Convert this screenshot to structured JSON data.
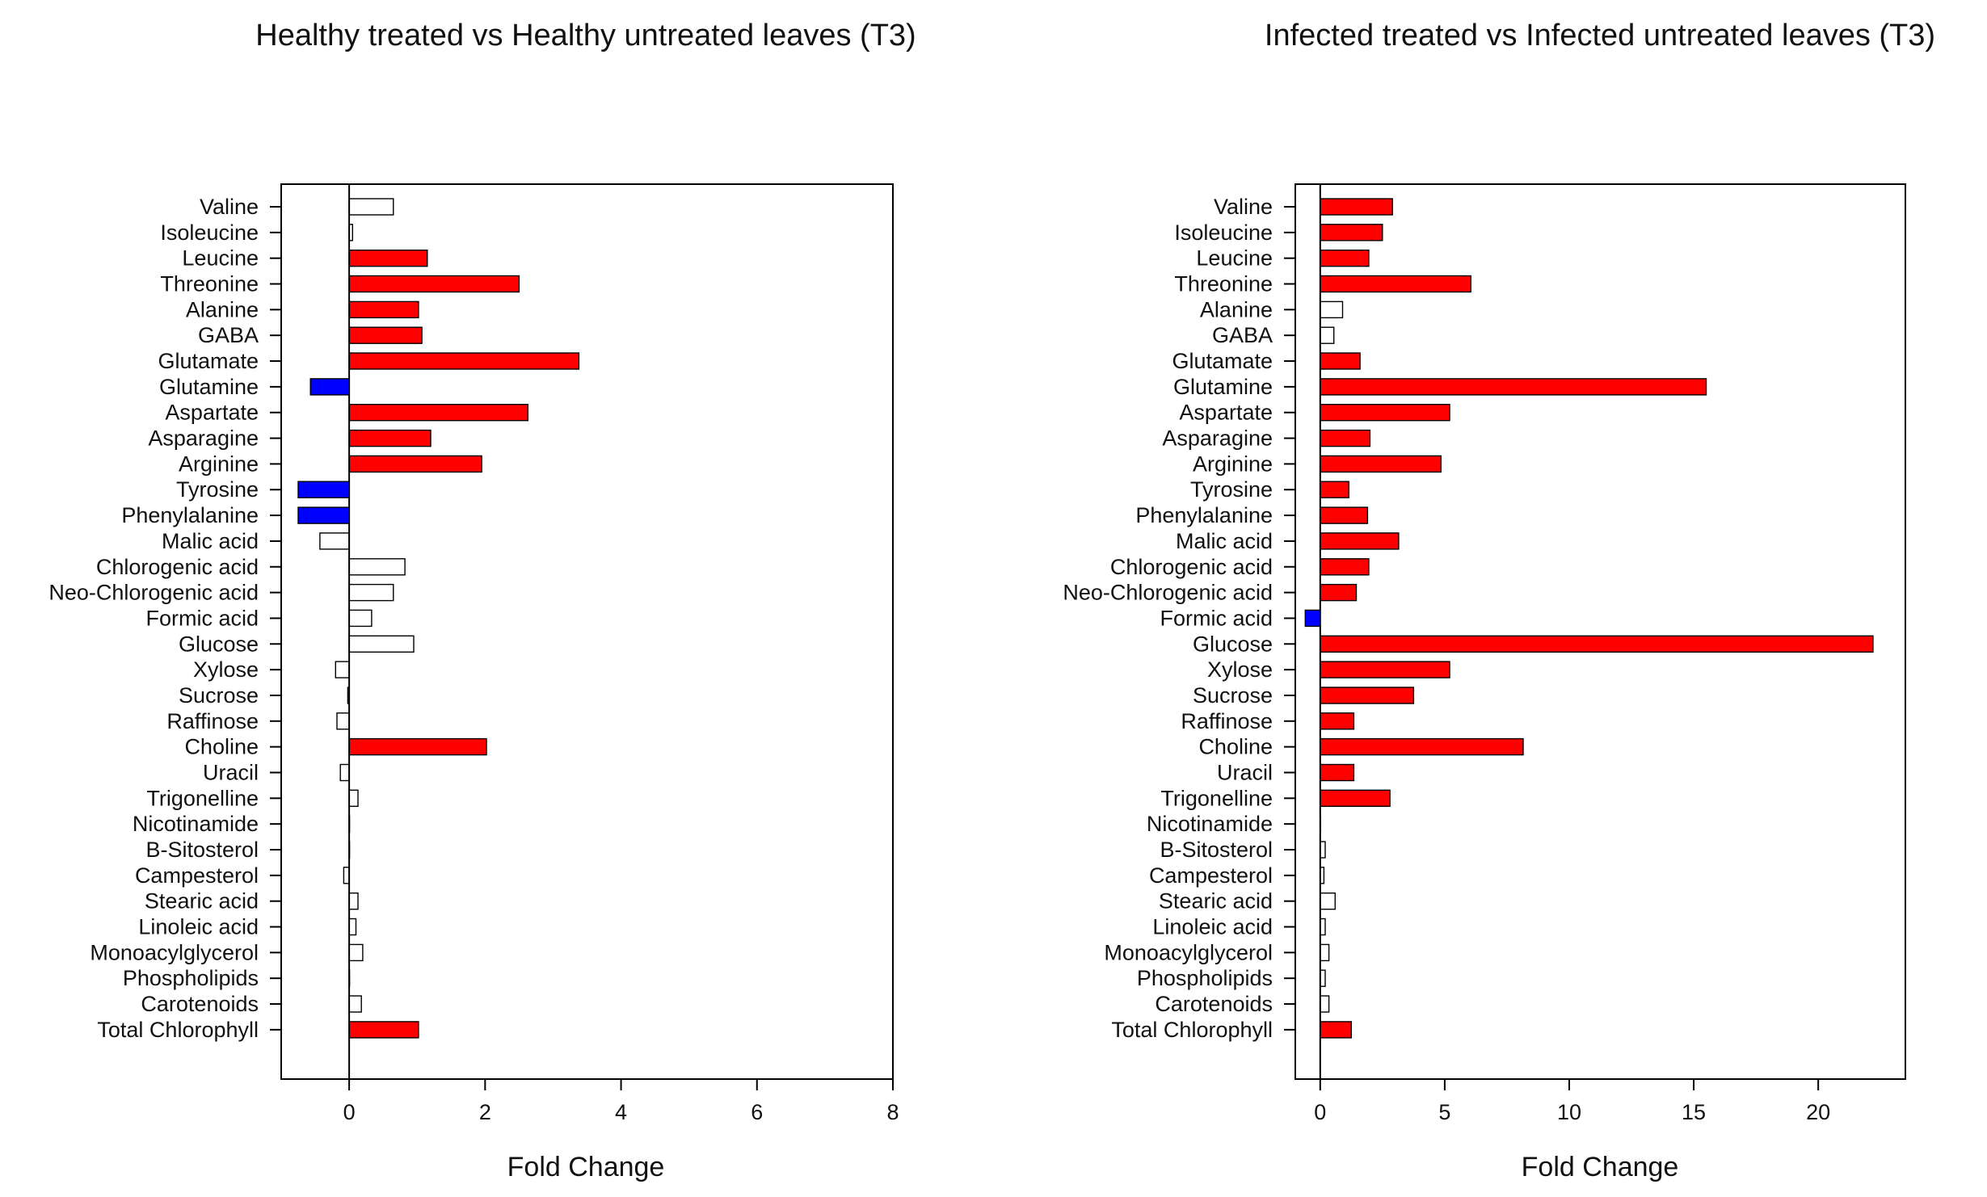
{
  "colors": {
    "increase": "#ff0000",
    "decrease": "#0000ff",
    "not_significant": "#ffffff",
    "stroke": "#000000"
  },
  "chart_data": [
    {
      "type": "bar",
      "orientation": "horizontal",
      "title": "Healthy treated vs Healthy untreated leaves (T3)",
      "xlabel": "Fold Change",
      "ylabel": "",
      "xlim": [
        -1.0,
        8.0
      ],
      "xticks": [
        0,
        2,
        4,
        6,
        8
      ],
      "grid": false,
      "categories": [
        "Valine",
        "Isoleucine",
        "Leucine",
        "Threonine",
        "Alanine",
        "GABA",
        "Glutamate",
        "Glutamine",
        "Aspartate",
        "Asparagine",
        "Arginine",
        "Tyrosine",
        "Phenylalanine",
        "Malic acid",
        "Chlorogenic acid",
        "Neo-Chlorogenic acid",
        "Formic acid",
        "Glucose",
        "Xylose",
        "Sucrose",
        "Raffinose",
        "Choline",
        "Uracil",
        "Trigonelline",
        "Nicotinamide",
        "B-Sitosterol",
        "Campesterol",
        "Stearic acid",
        "Linoleic acid",
        "Monoacylglycerol",
        "Phospholipids",
        "Carotenoids",
        "Total Chlorophyll"
      ],
      "values": [
        0.65,
        0.05,
        1.15,
        2.5,
        1.02,
        1.07,
        3.38,
        -0.57,
        2.63,
        1.2,
        1.95,
        -0.75,
        -0.75,
        -0.43,
        0.82,
        0.65,
        0.33,
        0.95,
        -0.2,
        -0.02,
        -0.18,
        2.02,
        -0.13,
        0.13,
        0.0,
        0.0,
        -0.08,
        0.13,
        0.1,
        0.2,
        0.0,
        0.18,
        1.02
      ],
      "status": [
        "ns",
        "ns",
        "up",
        "up",
        "up",
        "up",
        "up",
        "down",
        "up",
        "up",
        "up",
        "down",
        "down",
        "ns",
        "ns",
        "ns",
        "ns",
        "ns",
        "ns",
        "ns",
        "ns",
        "up",
        "ns",
        "ns",
        "ns",
        "ns",
        "ns",
        "ns",
        "ns",
        "ns",
        "ns",
        "ns",
        "up"
      ]
    },
    {
      "type": "bar",
      "orientation": "horizontal",
      "title": "Infected treated vs Infected untreated leaves (T3)",
      "xlabel": "Fold Change",
      "ylabel": "",
      "xlim": [
        -1.0,
        23.5
      ],
      "xticks": [
        0,
        5,
        10,
        15,
        20
      ],
      "grid": false,
      "categories": [
        "Valine",
        "Isoleucine",
        "Leucine",
        "Threonine",
        "Alanine",
        "GABA",
        "Glutamate",
        "Glutamine",
        "Aspartate",
        "Asparagine",
        "Arginine",
        "Tyrosine",
        "Phenylalanine",
        "Malic acid",
        "Chlorogenic acid",
        "Neo-Chlorogenic acid",
        "Formic acid",
        "Glucose",
        "Xylose",
        "Sucrose",
        "Raffinose",
        "Choline",
        "Uracil",
        "Trigonelline",
        "Nicotinamide",
        "B-Sitosterol",
        "Campesterol",
        "Stearic acid",
        "Linoleic acid",
        "Monoacylglycerol",
        "Phospholipids",
        "Carotenoids",
        "Total Chlorophyll"
      ],
      "values": [
        2.9,
        2.5,
        1.95,
        6.05,
        0.9,
        0.55,
        1.6,
        15.5,
        5.2,
        2.0,
        4.85,
        1.15,
        1.9,
        3.15,
        1.95,
        1.45,
        -0.6,
        22.2,
        5.2,
        3.75,
        1.35,
        8.15,
        1.35,
        2.8,
        0.0,
        0.2,
        0.15,
        0.6,
        0.2,
        0.35,
        0.2,
        0.35,
        1.25
      ],
      "status": [
        "up",
        "up",
        "up",
        "up",
        "ns",
        "ns",
        "up",
        "up",
        "up",
        "up",
        "up",
        "up",
        "up",
        "up",
        "up",
        "up",
        "down",
        "up",
        "up",
        "up",
        "up",
        "up",
        "up",
        "up",
        "ns",
        "ns",
        "ns",
        "ns",
        "ns",
        "ns",
        "ns",
        "ns",
        "up"
      ]
    }
  ]
}
